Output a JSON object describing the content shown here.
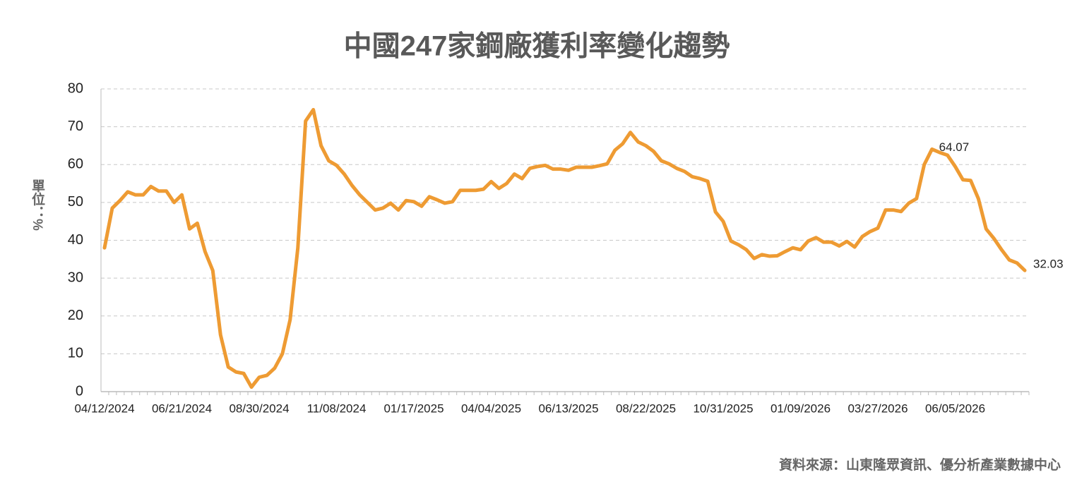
{
  "chart_data": {
    "type": "line",
    "title": "中國247家鋼廠獲利率變化趨勢",
    "y_label": "單位：%",
    "source": "資料來源：山東隆眾資訊、優分析產業數據中心",
    "categories": [
      "04/12/2024",
      null,
      null,
      null,
      null,
      null,
      null,
      null,
      null,
      null,
      "06/21/2024",
      null,
      null,
      null,
      null,
      null,
      null,
      null,
      null,
      null,
      "08/30/2024",
      null,
      null,
      null,
      null,
      null,
      null,
      null,
      null,
      null,
      "11/08/2024",
      null,
      null,
      null,
      null,
      null,
      null,
      null,
      null,
      null,
      "01/17/2025",
      null,
      null,
      null,
      null,
      null,
      null,
      null,
      null,
      null,
      "04/04/2025",
      null,
      null,
      null,
      null,
      null,
      null,
      null,
      null,
      null,
      "06/13/2025",
      null,
      null,
      null,
      null,
      null,
      null,
      null,
      null,
      null,
      "08/22/2025",
      null,
      null,
      null,
      null,
      null,
      null,
      null,
      null,
      null,
      "10/31/2025",
      null,
      null,
      null,
      null,
      null,
      null,
      null,
      null,
      null,
      "01/09/2026",
      null,
      null,
      null,
      null,
      null,
      null,
      null,
      null,
      null,
      "03/27/2026",
      null,
      null,
      null,
      null,
      null,
      null,
      null,
      null,
      null,
      "06/05/2026",
      null,
      null,
      null,
      null,
      null,
      null,
      null,
      null,
      null
    ],
    "series": [
      {
        "name": "獲利率",
        "color": "#ee9b33",
        "values": [
          38,
          48.5,
          50.5,
          52.8,
          52,
          52,
          54.2,
          53,
          53,
          50,
          52,
          43,
          44.5,
          37,
          32,
          15,
          6.5,
          5.2,
          4.8,
          1.2,
          3.8,
          4.3,
          6.2,
          10,
          19,
          38,
          71.5,
          74.5,
          65,
          61,
          59.8,
          57.5,
          54.5,
          52,
          50,
          48,
          48.5,
          49.8,
          48,
          50.5,
          50.2,
          49,
          51.5,
          50.7,
          49.8,
          50.2,
          53.2,
          53.2,
          53.2,
          53.5,
          55.5,
          53.7,
          55,
          57.5,
          56.3,
          59,
          59.5,
          59.8,
          58.8,
          58.8,
          58.5,
          59.3,
          59.3,
          59.3,
          59.7,
          60.2,
          63.8,
          65.5,
          68.5,
          66,
          65,
          63.5,
          61,
          60.2,
          59,
          58.2,
          56.8,
          56.3,
          55.6,
          47.5,
          45,
          39.8,
          38.8,
          37.5,
          35.2,
          36.2,
          35.8,
          35.9,
          37,
          38,
          37.5,
          39.8,
          40.7,
          39.5,
          39.5,
          38.5,
          39.7,
          38.2,
          41,
          42.3,
          43.2,
          48,
          48,
          47.6,
          49.8,
          51,
          60,
          64.07,
          63.2,
          62.5,
          59.5,
          56,
          55.8,
          51,
          43,
          40.5,
          37.5,
          34.8,
          34,
          32.03
        ],
        "value_labels": [
          null,
          null,
          null,
          null,
          null,
          null,
          null,
          null,
          null,
          null,
          null,
          null,
          null,
          null,
          null,
          null,
          null,
          null,
          null,
          null,
          null,
          null,
          null,
          null,
          null,
          null,
          null,
          null,
          null,
          null,
          null,
          null,
          null,
          null,
          null,
          null,
          null,
          null,
          null,
          null,
          null,
          null,
          null,
          null,
          null,
          null,
          null,
          null,
          null,
          null,
          null,
          null,
          null,
          null,
          null,
          null,
          null,
          null,
          null,
          null,
          null,
          null,
          null,
          null,
          null,
          null,
          null,
          null,
          null,
          null,
          null,
          null,
          null,
          null,
          null,
          null,
          null,
          null,
          null,
          null,
          null,
          null,
          null,
          null,
          null,
          null,
          null,
          null,
          null,
          null,
          null,
          null,
          null,
          null,
          null,
          null,
          null,
          null,
          null,
          null,
          null,
          null,
          null,
          null,
          null,
          null,
          null,
          "64.07",
          null,
          null,
          null,
          null,
          null,
          null,
          null,
          null,
          null,
          null,
          null,
          "32.03"
        ]
      }
    ],
    "ylim": [
      0,
      80
    ],
    "yticks": [
      0,
      10,
      20,
      30,
      40,
      50,
      60,
      70,
      80
    ],
    "grid": true
  }
}
